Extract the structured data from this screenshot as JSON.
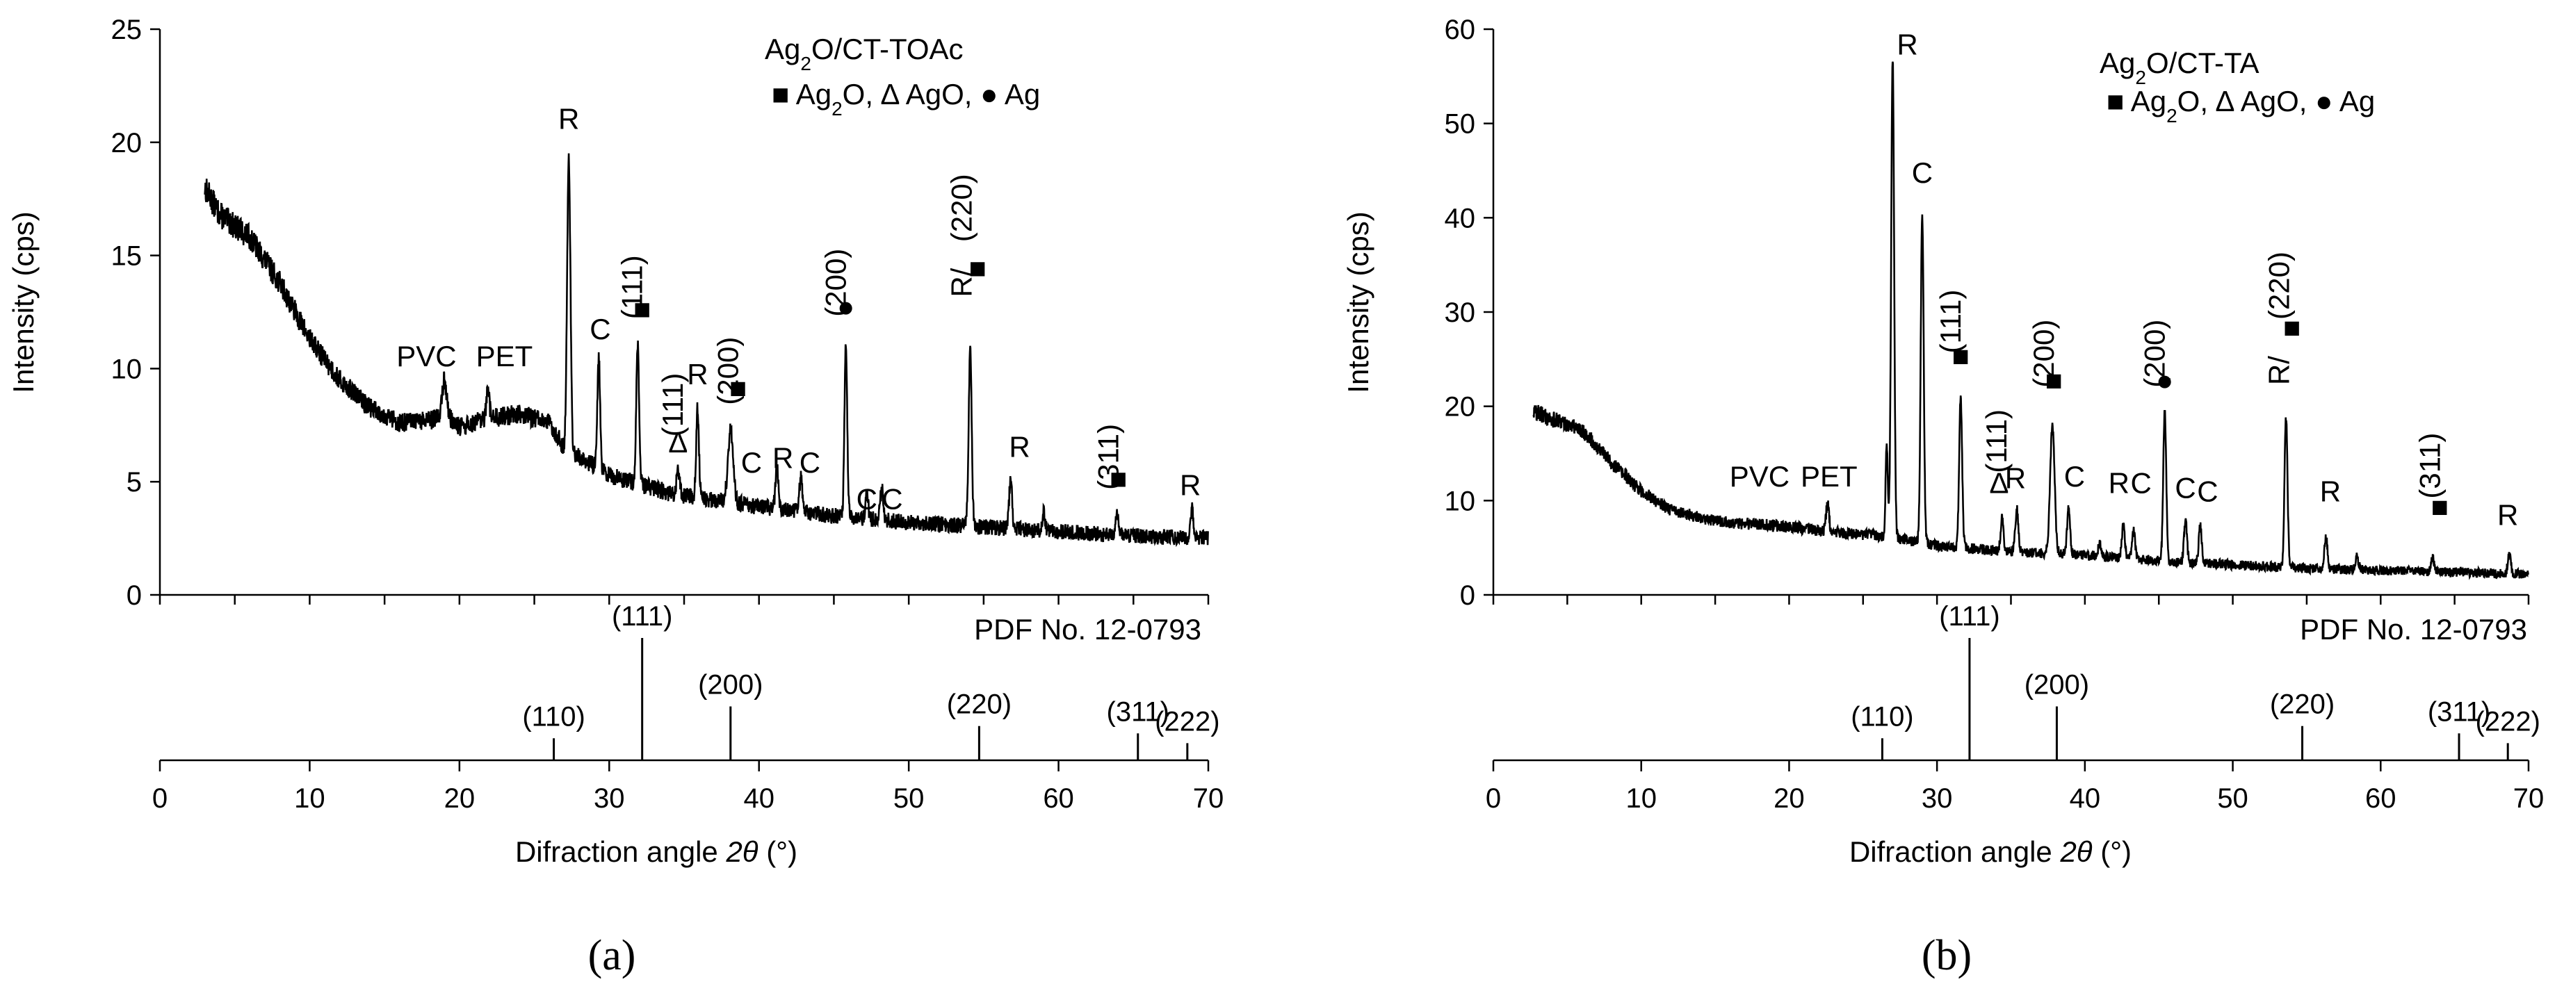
{
  "panels": [
    {
      "id": "a",
      "panel_label": "(a)",
      "legend_title_main": "Ag",
      "legend_title_sub": "2",
      "legend_title_rest": "O/CT-TOAc",
      "legend_line": [
        "■ Ag",
        "2",
        "O, ∆ AgO,  ● Ag"
      ],
      "pdf_label": "PDF No. 12-0793",
      "xlabel_main": "Difraction angle ",
      "xlabel_italic": "2θ",
      "xlabel_unit": " (°)",
      "ylabel": "Intensity (cps)"
    },
    {
      "id": "b",
      "panel_label": "(b)",
      "legend_title_main": "Ag",
      "legend_title_sub": "2",
      "legend_title_rest": "O/CT-TA",
      "legend_line": [
        "■ Ag",
        "2",
        "O, ∆ AgO,  ● Ag"
      ],
      "pdf_label": "PDF No. 12-0793",
      "xlabel_main": "Difraction angle ",
      "xlabel_italic": "2θ",
      "xlabel_unit": " (°)",
      "ylabel": "Intensity (cps)"
    }
  ],
  "chart_data": [
    {
      "type": "line",
      "title": "Ag2O/CT-TOAc",
      "xlabel": "Difraction angle 2θ (°)",
      "ylabel": "Intensity (cps)",
      "xlim": [
        0,
        70
      ],
      "ylim": [
        0,
        25
      ],
      "xticks": [
        0,
        10,
        20,
        30,
        40,
        50,
        60,
        70
      ],
      "yticks": [
        0,
        5,
        10,
        15,
        20,
        25
      ],
      "baseline": [
        [
          3,
          18.0
        ],
        [
          4,
          16.8
        ],
        [
          6,
          15.8
        ],
        [
          8,
          13.8
        ],
        [
          10,
          11.3
        ],
        [
          12,
          9.5
        ],
        [
          14,
          8.3
        ],
        [
          16,
          7.6
        ],
        [
          18,
          7.7
        ],
        [
          19,
          8.0
        ],
        [
          20,
          7.4
        ],
        [
          22,
          7.8
        ],
        [
          24,
          8.0
        ],
        [
          26,
          7.6
        ],
        [
          27,
          6.5
        ],
        [
          30,
          5.3
        ],
        [
          34,
          4.5
        ],
        [
          40,
          3.9
        ],
        [
          45,
          3.5
        ],
        [
          50,
          3.2
        ],
        [
          55,
          3.0
        ],
        [
          60,
          2.8
        ],
        [
          65,
          2.6
        ],
        [
          70,
          2.5
        ]
      ],
      "noise": 0.6,
      "peaks": [
        [
          19.0,
          1.5,
          0.3
        ],
        [
          21.9,
          1.2,
          0.2
        ],
        [
          27.3,
          13.0,
          0.22
        ],
        [
          29.3,
          5.0,
          0.18
        ],
        [
          31.9,
          6.2,
          0.18
        ],
        [
          34.6,
          1.0,
          0.2
        ],
        [
          35.9,
          4.0,
          0.18
        ],
        [
          38.1,
          3.2,
          0.35
        ],
        [
          41.2,
          1.8,
          0.2
        ],
        [
          42.8,
          1.5,
          0.2
        ],
        [
          45.8,
          7.6,
          0.18
        ],
        [
          47.2,
          1.0,
          0.2
        ],
        [
          48.2,
          1.4,
          0.2
        ],
        [
          54.1,
          7.8,
          0.2
        ],
        [
          56.8,
          2.2,
          0.2
        ],
        [
          59.0,
          0.8,
          0.2
        ],
        [
          63.9,
          1.0,
          0.2
        ],
        [
          68.9,
          1.3,
          0.2
        ]
      ],
      "annotations": [
        {
          "text": "PVC",
          "x": 17.8,
          "y": 10.1
        },
        {
          "text": "PET",
          "x": 23.0,
          "y": 10.1
        },
        {
          "text": "R",
          "x": 27.3,
          "y": 20.6
        },
        {
          "text": "C",
          "x": 29.4,
          "y": 11.3
        },
        {
          "text": "(111)",
          "x": 32.2,
          "y": 13.6,
          "rotate": true
        },
        {
          "text": "■",
          "x": 32.2,
          "y": 12.2
        },
        {
          "text": "(111)",
          "x": 34.9,
          "y": 8.4,
          "rotate": true
        },
        {
          "text": "R",
          "x": 35.9,
          "y": 9.3
        },
        {
          "text": "∆",
          "x": 34.6,
          "y": 6.3
        },
        {
          "text": "(200)",
          "x": 38.6,
          "y": 9.9,
          "rotate": true
        },
        {
          "text": "■",
          "x": 38.6,
          "y": 8.7
        },
        {
          "text": "C",
          "x": 39.5,
          "y": 5.4
        },
        {
          "text": "R",
          "x": 41.6,
          "y": 5.6
        },
        {
          "text": "C",
          "x": 43.4,
          "y": 5.4
        },
        {
          "text": "(200)",
          "x": 45.8,
          "y": 13.8,
          "rotate": true
        },
        {
          "text": "●",
          "x": 45.8,
          "y": 12.3
        },
        {
          "text": "C",
          "x": 47.2,
          "y": 3.8
        },
        {
          "text": "C",
          "x": 48.9,
          "y": 3.8
        },
        {
          "text": "R/",
          "x": 54.2,
          "y": 13.8,
          "rotate": true
        },
        {
          "text": "(220)",
          "x": 54.2,
          "y": 17.1,
          "rotate": true
        },
        {
          "text": "■",
          "x": 54.6,
          "y": 14.0
        },
        {
          "text": "R",
          "x": 57.4,
          "y": 6.1
        },
        {
          "text": "(311)",
          "x": 64.0,
          "y": 6.1,
          "rotate": true
        },
        {
          "text": "■",
          "x": 64.0,
          "y": 4.7
        },
        {
          "text": "R",
          "x": 68.8,
          "y": 4.4
        }
      ],
      "reference": {
        "label": "PDF No. 12-0793",
        "lines": [
          {
            "x": 26.3,
            "h": 0.18,
            "label": "(110)"
          },
          {
            "x": 32.2,
            "h": 1.0,
            "label": "(111)"
          },
          {
            "x": 38.1,
            "h": 0.44,
            "label": "(200)"
          },
          {
            "x": 54.7,
            "h": 0.28,
            "label": "(220)"
          },
          {
            "x": 65.3,
            "h": 0.22,
            "label": "(311)"
          },
          {
            "x": 68.6,
            "h": 0.14,
            "label": "(222)"
          }
        ]
      }
    },
    {
      "type": "line",
      "title": "Ag2O/CT-TA",
      "xlabel": "Difraction angle 2θ (°)",
      "ylabel": "Intensity (cps)",
      "xlim": [
        0,
        70
      ],
      "ylim": [
        0,
        60
      ],
      "xticks": [
        0,
        10,
        20,
        30,
        40,
        50,
        60,
        70
      ],
      "yticks": [
        0,
        10,
        20,
        30,
        40,
        50,
        60
      ],
      "baseline": [
        [
          2.7,
          19.5
        ],
        [
          4,
          18.6
        ],
        [
          6,
          17.5
        ],
        [
          8,
          14.0
        ],
        [
          10,
          11.0
        ],
        [
          12,
          9.0
        ],
        [
          14,
          8.2
        ],
        [
          16,
          7.6
        ],
        [
          18,
          7.5
        ],
        [
          20,
          7.2
        ],
        [
          22,
          6.8
        ],
        [
          24,
          6.5
        ],
        [
          26,
          6.3
        ],
        [
          28,
          5.8
        ],
        [
          30,
          5.2
        ],
        [
          34,
          4.7
        ],
        [
          40,
          4.2
        ],
        [
          45,
          3.6
        ],
        [
          50,
          3.2
        ],
        [
          55,
          2.8
        ],
        [
          60,
          2.6
        ],
        [
          65,
          2.4
        ],
        [
          70,
          2.2
        ]
      ],
      "noise": 0.9,
      "peaks": [
        [
          22.6,
          3.0,
          0.2
        ],
        [
          26.6,
          10.0,
          0.15
        ],
        [
          27.0,
          51.0,
          0.2
        ],
        [
          29.0,
          35.0,
          0.2
        ],
        [
          31.6,
          16.0,
          0.2
        ],
        [
          34.4,
          3.5,
          0.2
        ],
        [
          35.4,
          4.5,
          0.2
        ],
        [
          37.8,
          13.5,
          0.3
        ],
        [
          38.9,
          5.0,
          0.2
        ],
        [
          41.0,
          1.5,
          0.2
        ],
        [
          42.6,
          3.5,
          0.2
        ],
        [
          43.3,
          3.0,
          0.2
        ],
        [
          45.4,
          16.0,
          0.2
        ],
        [
          46.8,
          4.5,
          0.2
        ],
        [
          47.8,
          4.0,
          0.2
        ],
        [
          53.6,
          16.0,
          0.2
        ],
        [
          56.3,
          3.5,
          0.2
        ],
        [
          58.4,
          1.5,
          0.2
        ],
        [
          63.5,
          1.5,
          0.2
        ],
        [
          68.7,
          2.0,
          0.2
        ]
      ],
      "annotations": [
        {
          "text": "PVC",
          "x": 18.0,
          "y": 11.5
        },
        {
          "text": "PET",
          "x": 22.7,
          "y": 11.5
        },
        {
          "text": "R",
          "x": 28.0,
          "y": 57.3
        },
        {
          "text": "C",
          "x": 29.0,
          "y": 43.7
        },
        {
          "text": "(111)",
          "x": 31.6,
          "y": 29.0,
          "rotate": true
        },
        {
          "text": "■",
          "x": 31.6,
          "y": 24.3
        },
        {
          "text": "(111)",
          "x": 34.7,
          "y": 16.3,
          "rotate": true
        },
        {
          "text": "∆",
          "x": 34.2,
          "y": 10.8
        },
        {
          "text": "R",
          "x": 35.3,
          "y": 11.3
        },
        {
          "text": "(200)",
          "x": 37.9,
          "y": 25.6,
          "rotate": true
        },
        {
          "text": "■",
          "x": 37.9,
          "y": 21.7
        },
        {
          "text": "C",
          "x": 39.3,
          "y": 11.5
        },
        {
          "text": "R",
          "x": 42.3,
          "y": 10.8
        },
        {
          "text": "C",
          "x": 43.8,
          "y": 10.8
        },
        {
          "text": "(200)",
          "x": 45.4,
          "y": 25.6,
          "rotate": true
        },
        {
          "text": "●",
          "x": 45.4,
          "y": 21.7
        },
        {
          "text": "C",
          "x": 46.8,
          "y": 10.3
        },
        {
          "text": "C",
          "x": 48.3,
          "y": 9.9
        },
        {
          "text": "R/",
          "x": 53.8,
          "y": 23.8,
          "rotate": true
        },
        {
          "text": "(220)",
          "x": 53.8,
          "y": 32.8,
          "rotate": true
        },
        {
          "text": "■",
          "x": 54.0,
          "y": 27.3
        },
        {
          "text": "R",
          "x": 56.6,
          "y": 9.9
        },
        {
          "text": "(311)",
          "x": 64.0,
          "y": 13.7,
          "rotate": true
        },
        {
          "text": "■",
          "x": 64.0,
          "y": 8.3
        },
        {
          "text": "R",
          "x": 68.6,
          "y": 7.4
        }
      ],
      "reference": {
        "label": "PDF No. 12-0793",
        "lines": [
          {
            "x": 26.3,
            "h": 0.18,
            "label": "(110)"
          },
          {
            "x": 32.2,
            "h": 1.0,
            "label": "(111)"
          },
          {
            "x": 38.1,
            "h": 0.44,
            "label": "(200)"
          },
          {
            "x": 54.7,
            "h": 0.28,
            "label": "(220)"
          },
          {
            "x": 65.3,
            "h": 0.22,
            "label": "(311)"
          },
          {
            "x": 68.6,
            "h": 0.14,
            "label": "(222)"
          }
        ]
      }
    }
  ]
}
